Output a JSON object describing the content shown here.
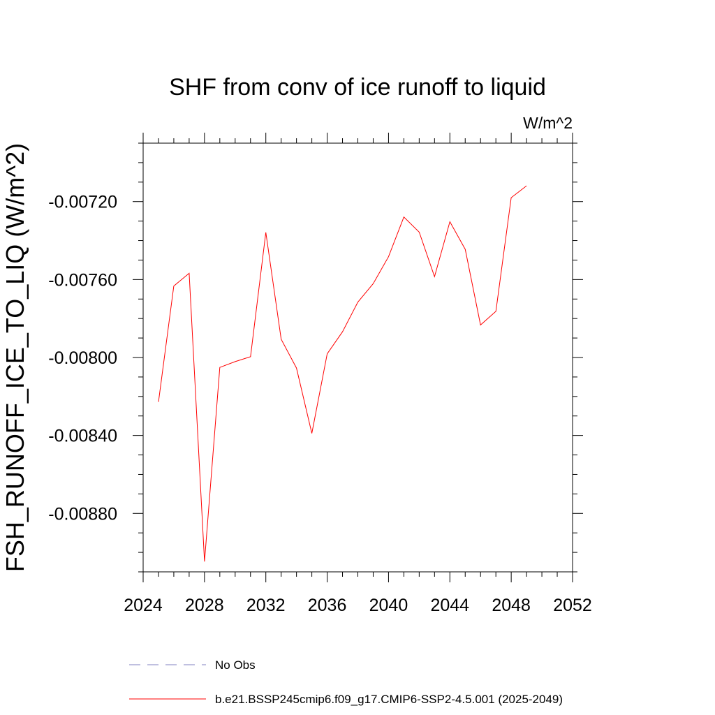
{
  "chart_data": {
    "type": "line",
    "title": "SHF from conv of ice runoff to liquid",
    "units_label": "W/m^2",
    "ylabel": "FSH_RUNOFF_ICE_TO_LIQ  (W/m^2)",
    "xlabel": "",
    "xlim": [
      2024,
      2052
    ],
    "ylim": [
      -0.0091,
      -0.0069
    ],
    "x_ticks": [
      2024,
      2028,
      2032,
      2036,
      2040,
      2044,
      2048,
      2052
    ],
    "x_tick_labels": [
      "2024",
      "2028",
      "2032",
      "2036",
      "2040",
      "2044",
      "2048",
      "2052"
    ],
    "y_ticks": [
      -0.0072,
      -0.0076,
      -0.008,
      -0.0084,
      -0.0088
    ],
    "y_tick_labels": [
      "-0.00720",
      "-0.00760",
      "-0.00800",
      "-0.00840",
      "-0.00880"
    ],
    "grid": false,
    "legend_position": "bottom",
    "series": [
      {
        "name": "No Obs",
        "color": "#8080c0",
        "dash": "dashed",
        "x": [],
        "y": []
      },
      {
        "name": "b.e21.BSSP245cmip6.f09_g17.CMIP6-SSP2-4.5.001 (2025-2049)",
        "color": "#ff0000",
        "dash": "solid",
        "x": [
          2025,
          2026,
          2027,
          2028,
          2029,
          2030,
          2031,
          2032,
          2033,
          2034,
          2035,
          2036,
          2037,
          2038,
          2039,
          2040,
          2041,
          2042,
          2043,
          2044,
          2045,
          2046,
          2047,
          2048,
          2049
        ],
        "y": [
          -0.008228,
          -0.007633,
          -0.007568,
          -0.009047,
          -0.008051,
          -0.008021,
          -0.007996,
          -0.007358,
          -0.007906,
          -0.008054,
          -0.008389,
          -0.007981,
          -0.007868,
          -0.007716,
          -0.007621,
          -0.007483,
          -0.007279,
          -0.007357,
          -0.007585,
          -0.007303,
          -0.007445,
          -0.007833,
          -0.007763,
          -0.00718,
          -0.007119
        ]
      }
    ]
  }
}
